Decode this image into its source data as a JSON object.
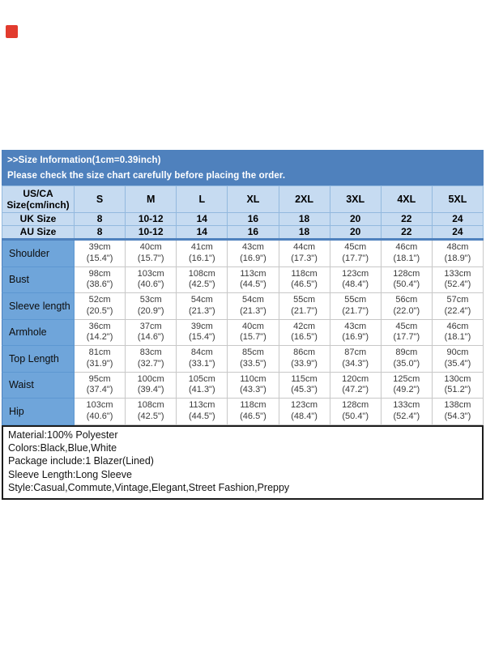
{
  "badge": {
    "name": "brand-badge"
  },
  "header": {
    "line1": ">>Size Information(1cm=0.39inch)",
    "line2": "Please check the size chart carefully before placing the order."
  },
  "table": {
    "corner_label": "US/CA\nSize(cm/inch)",
    "columns": [
      "S",
      "M",
      "L",
      "XL",
      "2XL",
      "3XL",
      "4XL",
      "5XL"
    ],
    "header_rows": [
      {
        "label": "UK Size",
        "values": [
          "8",
          "10-12",
          "14",
          "16",
          "18",
          "20",
          "22",
          "24"
        ]
      },
      {
        "label": "AU Size",
        "values": [
          "8",
          "10-12",
          "14",
          "16",
          "18",
          "20",
          "22",
          "24"
        ]
      }
    ],
    "rows": [
      {
        "label": "Shoulder",
        "values": [
          "39cm\n(15.4\")",
          "40cm\n(15.7\")",
          "41cm\n(16.1\")",
          "43cm\n(16.9\")",
          "44cm\n(17.3\")",
          "45cm\n(17.7\")",
          "46cm\n(18.1\")",
          "48cm\n(18.9\")"
        ]
      },
      {
        "label": "Bust",
        "values": [
          "98cm\n(38.6\")",
          "103cm\n(40.6\")",
          "108cm\n(42.5\")",
          "113cm\n(44.5\")",
          "118cm\n(46.5\")",
          "123cm\n(48.4\")",
          "128cm\n(50.4\")",
          "133cm\n(52.4\")"
        ]
      },
      {
        "label": "Sleeve length",
        "values": [
          "52cm\n(20.5\")",
          "53cm\n(20.9\")",
          "54cm\n(21.3\")",
          "54cm\n(21.3\")",
          "55cm\n(21.7\")",
          "55cm\n(21.7\")",
          "56cm\n(22.0\")",
          "57cm\n(22.4\")"
        ]
      },
      {
        "label": "Armhole",
        "values": [
          "36cm\n(14.2\")",
          "37cm\n(14.6\")",
          "39cm\n(15.4\")",
          "40cm\n(15.7\")",
          "42cm\n(16.5\")",
          "43cm\n(16.9\")",
          "45cm\n(17.7\")",
          "46cm\n(18.1\")"
        ]
      },
      {
        "label": "Top Length",
        "values": [
          "81cm\n(31.9\")",
          "83cm\n(32.7\")",
          "84cm\n(33.1\")",
          "85cm\n(33.5\")",
          "86cm\n(33.9\")",
          "87cm\n(34.3\")",
          "89cm\n(35.0\")",
          "90cm\n(35.4\")"
        ]
      },
      {
        "label": "Waist",
        "values": [
          "95cm\n(37.4\")",
          "100cm\n(39.4\")",
          "105cm\n(41.3\")",
          "110cm\n(43.3\")",
          "115cm\n(45.3\")",
          "120cm\n(47.2\")",
          "125cm\n(49.2\")",
          "130cm\n(51.2\")"
        ]
      },
      {
        "label": "Hip",
        "values": [
          "103cm\n(40.6\")",
          "108cm\n(42.5\")",
          "113cm\n(44.5\")",
          "118cm\n(46.5\")",
          "123cm\n(48.4\")",
          "128cm\n(50.4\")",
          "133cm\n(52.4\")",
          "138cm\n(54.3\")"
        ]
      }
    ]
  },
  "details": {
    "lines": [
      "Material:100% Polyester",
      "Colors:Black,Blue,White",
      "Package include:1 Blazer(Lined)",
      "Sleeve Length:Long Sleeve",
      "Style:Casual,Commute,Vintage,Elegant,Street Fashion,Preppy"
    ]
  },
  "colors": {
    "header_bar": "#4f81bd",
    "header_cell": "#c6dbf1",
    "label_cell": "#6fa5da",
    "badge_red": "#e23b2e"
  }
}
